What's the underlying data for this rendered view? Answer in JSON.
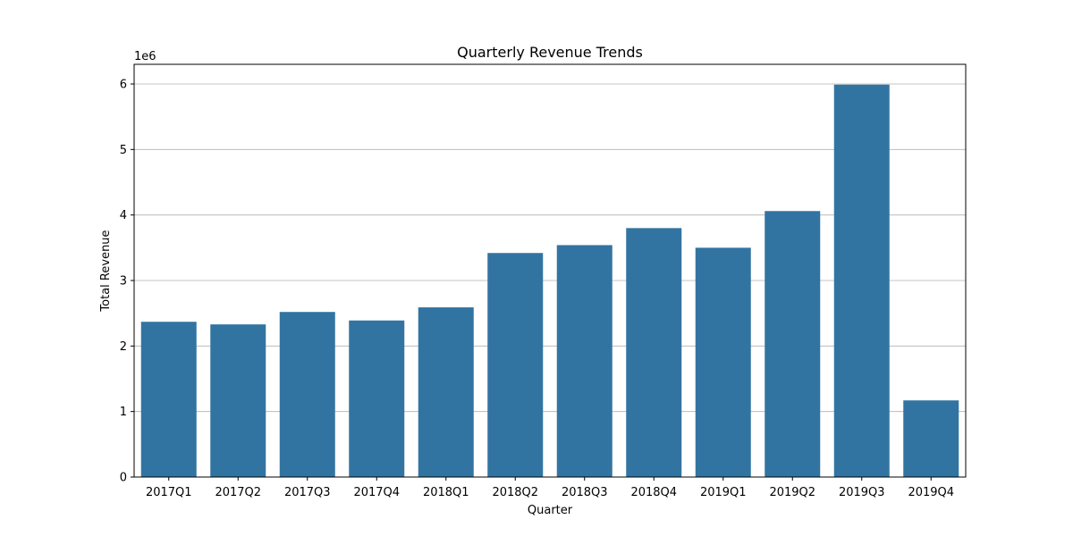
{
  "chart_data": {
    "type": "bar",
    "title": "Quarterly Revenue Trends",
    "xlabel": "Quarter",
    "ylabel": "Total Revenue",
    "y_offset_label": "1e6",
    "y_scale": 1000000,
    "categories": [
      "2017Q1",
      "2017Q2",
      "2017Q3",
      "2017Q4",
      "2018Q1",
      "2018Q2",
      "2018Q3",
      "2018Q4",
      "2019Q1",
      "2019Q2",
      "2019Q3",
      "2019Q4"
    ],
    "values": [
      2370000,
      2330000,
      2520000,
      2390000,
      2590000,
      3420000,
      3540000,
      3800000,
      3500000,
      4060000,
      5990000,
      1170000
    ],
    "ylim": [
      0,
      6300000
    ],
    "yticks": [
      0,
      1,
      2,
      3,
      4,
      5,
      6
    ],
    "grid": "y",
    "bar_color": "#3274a1",
    "grid_color": "#b0b0b0"
  }
}
